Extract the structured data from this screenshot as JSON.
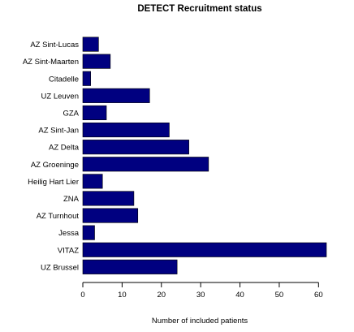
{
  "chart_data": {
    "type": "bar",
    "orientation": "horizontal",
    "title": "DETECT  Recruitment status",
    "xlabel": "Number of included patients",
    "ylabel": "",
    "categories": [
      "AZ Sint-Lucas",
      "AZ Sint-Maarten",
      "Citadelle",
      "UZ Leuven",
      "GZA",
      "AZ Sint-Jan",
      "AZ Delta",
      "AZ Groeninge",
      "Heilig Hart Lier",
      "ZNA",
      "AZ Turnhout",
      "Jessa",
      "VITAZ",
      "UZ Brussel"
    ],
    "values": [
      4,
      7,
      2,
      17,
      6,
      22,
      27,
      32,
      5,
      13,
      14,
      3,
      62,
      24
    ],
    "xlim": [
      0,
      62
    ],
    "xticks": [
      0,
      10,
      20,
      30,
      40,
      50,
      60
    ],
    "grid": false,
    "legend": "none",
    "bar_color": "#000080"
  }
}
